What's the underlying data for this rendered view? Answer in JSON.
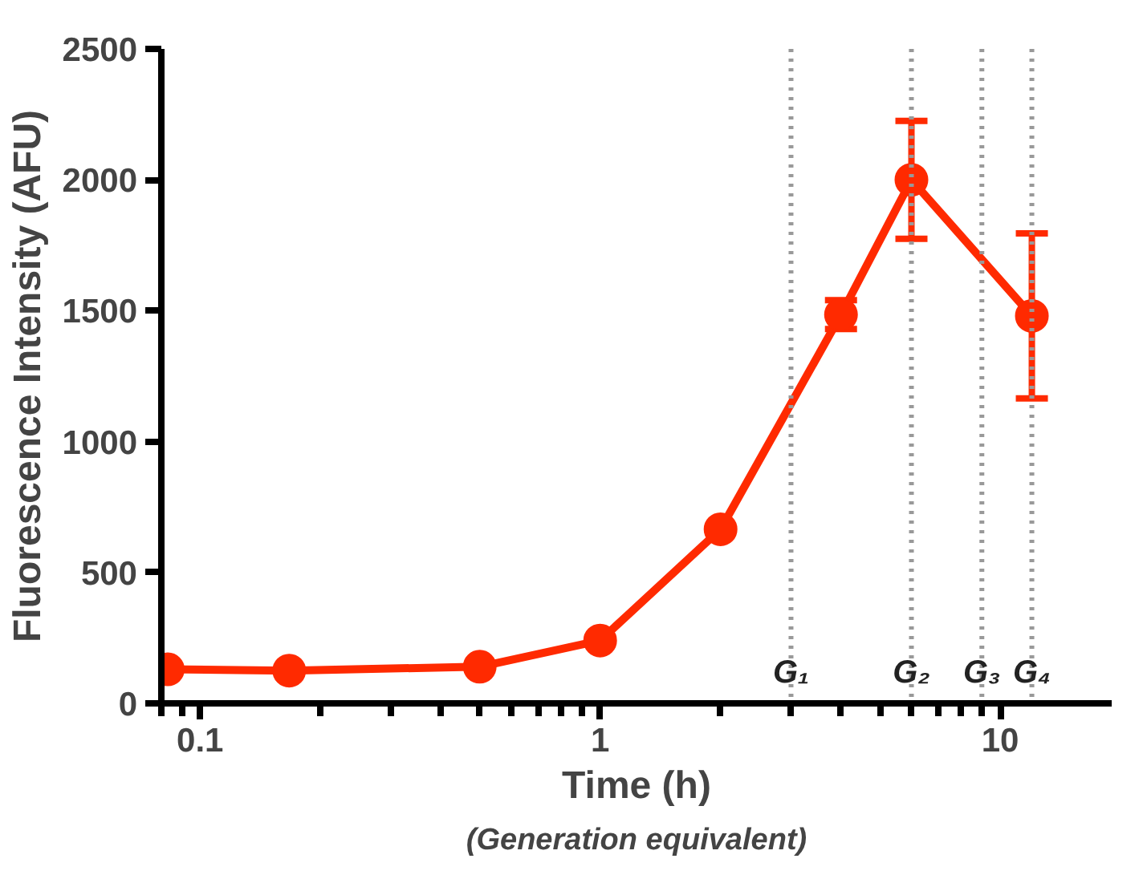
{
  "chart_data": {
    "type": "line",
    "xlabel": "Time (h)",
    "ylabel": "Fluorescence Intensity (AFU)",
    "annotations": [
      "(Generation equivalent)"
    ],
    "x": [
      0.083,
      0.167,
      0.5,
      1,
      2,
      4,
      6,
      12
    ],
    "series": [
      {
        "color": "#ff2a00",
        "values": [
          130,
          125,
          140,
          240,
          665,
          1485,
          2000,
          1480
        ],
        "errors": [
          null,
          null,
          null,
          null,
          null,
          55,
          225,
          315
        ]
      }
    ],
    "xlim": [
      0.08,
      19
    ],
    "xticks": [
      0.1,
      1,
      10
    ],
    "ylim": [
      0,
      2500
    ],
    "yticks": [
      0,
      500,
      1000,
      1500,
      2000,
      2500
    ],
    "log": "x",
    "grid": false,
    "marker": "circle",
    "line_style": "solid",
    "ref_lines": [
      {
        "axis": "x",
        "value": 3,
        "label": "G₁",
        "color": "#999999",
        "line_style": "dotted"
      },
      {
        "axis": "x",
        "value": 6,
        "label": "G₂",
        "color": "#999999",
        "line_style": "dotted"
      },
      {
        "axis": "x",
        "value": 9,
        "label": "G₃",
        "color": "#999999",
        "line_style": "dotted"
      },
      {
        "axis": "x",
        "value": 12,
        "label": "G₄",
        "color": "#999999",
        "line_style": "dotted"
      }
    ]
  }
}
